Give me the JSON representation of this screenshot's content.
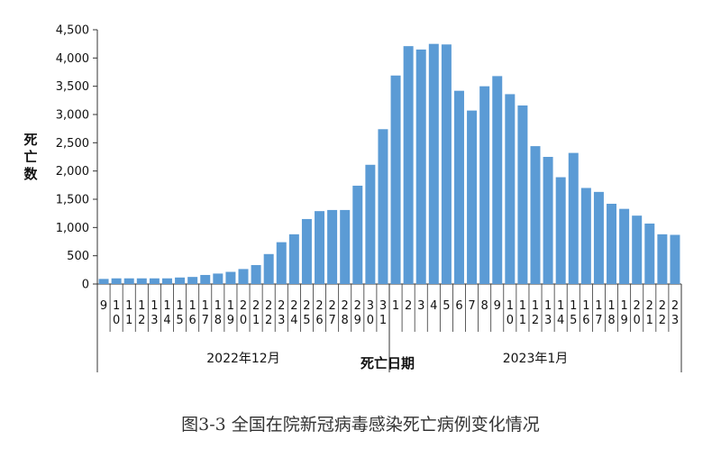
{
  "caption": "图3-3 全国在院新冠病毒感染死亡病例变化情况",
  "chart_data": {
    "type": "bar",
    "ylabel": "死亡数",
    "xlabel": "死亡日期",
    "ylim": [
      0,
      4500
    ],
    "yticks": [
      "0",
      "500",
      "1,000",
      "1,500",
      "2,000",
      "2,500",
      "3,000",
      "3,500",
      "4,000",
      "4,500"
    ],
    "bar_color": "#5b9bd5",
    "groups": [
      {
        "label": "2022年12月"
      },
      {
        "label": "2023年1月"
      }
    ],
    "categories": [
      "9",
      "10",
      "11",
      "12",
      "13",
      "14",
      "15",
      "16",
      "17",
      "18",
      "19",
      "20",
      "21",
      "22",
      "23",
      "24",
      "25",
      "26",
      "27",
      "28",
      "29",
      "30",
      "31",
      "1",
      "2",
      "3",
      "4",
      "5",
      "6",
      "7",
      "8",
      "9",
      "10",
      "11",
      "12",
      "13",
      "14",
      "15",
      "16",
      "17",
      "18",
      "19",
      "20",
      "21",
      "22",
      "23"
    ],
    "values": [
      90,
      100,
      100,
      100,
      100,
      100,
      115,
      125,
      160,
      185,
      215,
      265,
      335,
      530,
      740,
      880,
      1150,
      1290,
      1310,
      1310,
      1740,
      2110,
      2740,
      3690,
      4210,
      4150,
      4250,
      4240,
      3420,
      3070,
      3500,
      3680,
      3360,
      3160,
      2440,
      2250,
      1890,
      2320,
      1700,
      1630,
      1420,
      1330,
      1210,
      1070,
      880,
      870
    ]
  }
}
